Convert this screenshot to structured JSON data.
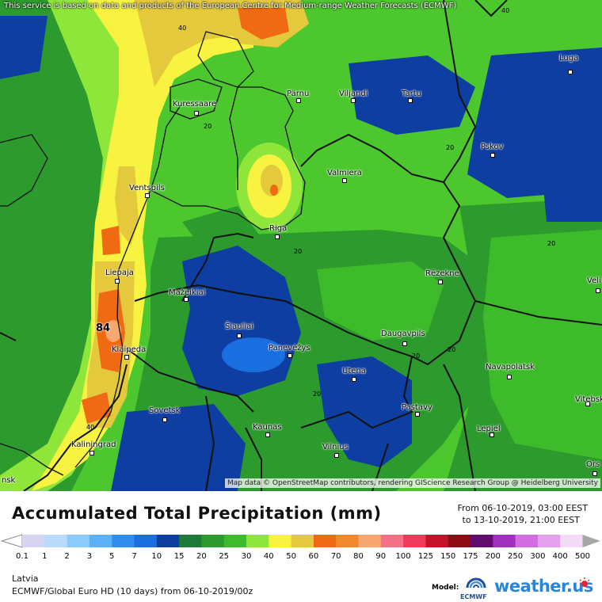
{
  "map": {
    "attribution_top": "This service is based on data and products of the European Centre for Medium-range Weather Forecasts (ECMWF)",
    "attribution_bottom": "Map data © OpenStreetMap contributors, rendering GIScience Research Group @ Heidelberg University",
    "max_value": "84",
    "cities": [
      {
        "name": "Luga"
      },
      {
        "name": "Pärnu"
      },
      {
        "name": "Viljandi"
      },
      {
        "name": "Tartu"
      },
      {
        "name": "Kuressaare"
      },
      {
        "name": "Pskov"
      },
      {
        "name": "Valmiera"
      },
      {
        "name": "Ventspils"
      },
      {
        "name": "Riga"
      },
      {
        "name": "Liepaja"
      },
      {
        "name": "Rēzekne"
      },
      {
        "name": "Veli"
      },
      {
        "name": "Mažeikiai"
      },
      {
        "name": "Šiauliai"
      },
      {
        "name": "Panevėžys"
      },
      {
        "name": "Daugavpils"
      },
      {
        "name": "Klaipeda"
      },
      {
        "name": "Utena"
      },
      {
        "name": "Navapolatsk"
      },
      {
        "name": "Vitebsk"
      },
      {
        "name": "Sovetsk"
      },
      {
        "name": "Pastavy"
      },
      {
        "name": "Kaunas"
      },
      {
        "name": "Lepiel"
      },
      {
        "name": "Kaliningrad"
      },
      {
        "name": "Vilnius"
      },
      {
        "name": "Ors"
      },
      {
        "name": "nsk"
      }
    ],
    "contour_labels": [
      "40",
      "40",
      "20",
      "20",
      "20",
      "20",
      "20",
      "20",
      "20",
      "40"
    ]
  },
  "header": {
    "title": "Accumulated Total Precipitation (mm)",
    "period_from": "From 06-10-2019, 03:00 EEST",
    "period_to": "to 13-10-2019, 21:00 EEST"
  },
  "legend": {
    "values": [
      "0.1",
      "1",
      "2",
      "3",
      "5",
      "7",
      "10",
      "15",
      "20",
      "25",
      "30",
      "40",
      "50",
      "60",
      "70",
      "80",
      "90",
      "100",
      "125",
      "150",
      "175",
      "200",
      "250",
      "300",
      "400",
      "500"
    ],
    "colors": [
      "#d6d6f2",
      "#b9dcfb",
      "#8ccbfb",
      "#5ab1f7",
      "#2d8ef0",
      "#1a6fe0",
      "#0e3ea1",
      "#1f7a3a",
      "#2c9a2c",
      "#3dbb2a",
      "#8fe63a",
      "#f7f340",
      "#e3c93b",
      "#f06a14",
      "#f5882c",
      "#f8a86e",
      "#f56f86",
      "#ee3b5b",
      "#c4122b",
      "#8e0a14",
      "#600d6e",
      "#a22fbf",
      "#d26ee0",
      "#e3a0ec",
      "#f3dcf7",
      "#d2d2d2"
    ],
    "under_color": "#ffffff",
    "over_color": "#a6a6a6"
  },
  "footer": {
    "region": "Latvia",
    "model": "ECMWF/Global Euro HD (10 days) from 06-10-2019/00z",
    "model_label": "Model:",
    "ecmwf_text": "ECMWF",
    "brand": "weather.",
    "brand_ext": "us"
  }
}
